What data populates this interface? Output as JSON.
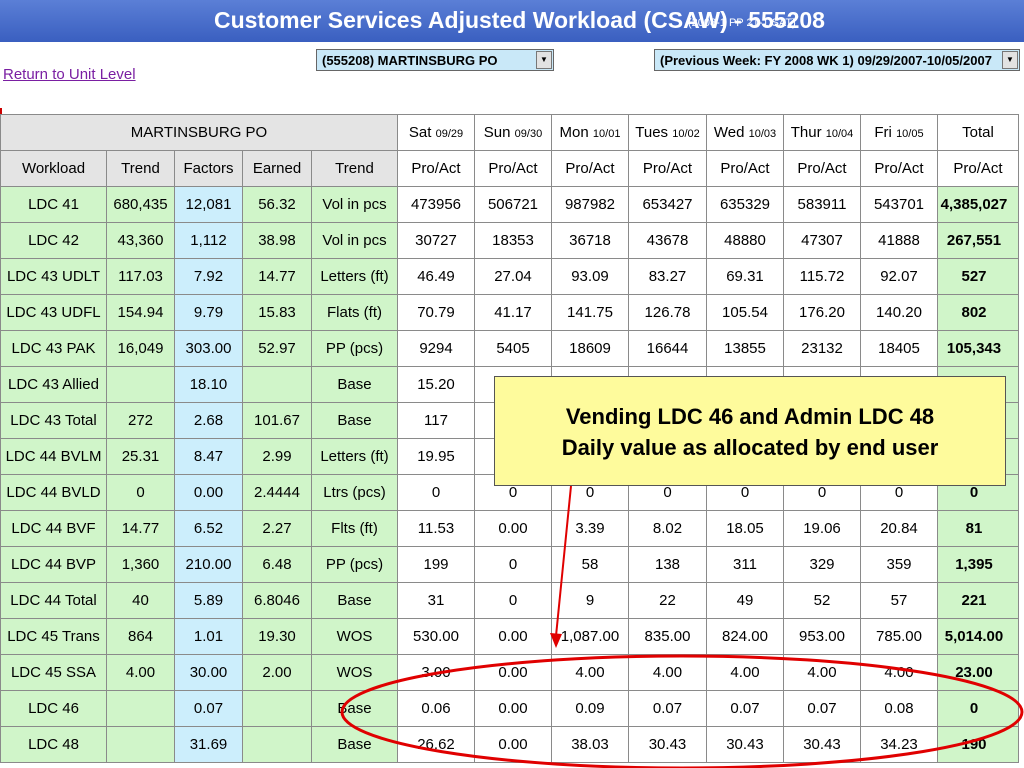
{
  "banner": {
    "title": "Customer Services Adjusted Workload (CSAW) - 555208",
    "subtitle": "(2008-1  PP 21-1   SAT)"
  },
  "toolbar": {
    "return_link": "Return to Unit Level",
    "unit_select": "(555208) MARTINSBURG PO",
    "week_select": "(Previous Week: FY 2008 WK 1) 09/29/2007-10/05/2007"
  },
  "table": {
    "unit_name": "MARTINSBURG PO",
    "days": [
      {
        "name": "Sat",
        "date": "09/29"
      },
      {
        "name": "Sun",
        "date": "09/30"
      },
      {
        "name": "Mon",
        "date": "10/01"
      },
      {
        "name": "Tues",
        "date": "10/02"
      },
      {
        "name": "Wed",
        "date": "10/03"
      },
      {
        "name": "Thur",
        "date": "10/04"
      },
      {
        "name": "Fri",
        "date": "10/05"
      }
    ],
    "total_header": "Total",
    "columns": [
      "Workload",
      "Trend",
      "Factors",
      "Earned",
      "Trend",
      "Pro/Act",
      "Pro/Act",
      "Pro/Act",
      "Pro/Act",
      "Pro/Act",
      "Pro/Act",
      "Pro/Act",
      "Pro/Act"
    ],
    "rows": [
      {
        "workload": "LDC 41",
        "trend": "680,435",
        "factors": "12,081",
        "earned": "56.32",
        "trend_unit": "Vol in pcs",
        "days": [
          "473956",
          "506721",
          "987982",
          "653427",
          "635329",
          "583911",
          "543701"
        ],
        "total": "4,385,027"
      },
      {
        "workload": "LDC 42",
        "trend": "43,360",
        "factors": "1,112",
        "earned": "38.98",
        "trend_unit": "Vol in pcs",
        "days": [
          "30727",
          "18353",
          "36718",
          "43678",
          "48880",
          "47307",
          "41888"
        ],
        "total": "267,551"
      },
      {
        "workload": "LDC 43 UDLT",
        "trend": "117.03",
        "factors": "7.92",
        "earned": "14.77",
        "trend_unit": "Letters (ft)",
        "days": [
          "46.49",
          "27.04",
          "93.09",
          "83.27",
          "69.31",
          "115.72",
          "92.07"
        ],
        "total": "527"
      },
      {
        "workload": "LDC 43 UDFL",
        "trend": "154.94",
        "factors": "9.79",
        "earned": "15.83",
        "trend_unit": "Flats (ft)",
        "days": [
          "70.79",
          "41.17",
          "141.75",
          "126.78",
          "105.54",
          "176.20",
          "140.20"
        ],
        "total": "802"
      },
      {
        "workload": "LDC 43 PAK",
        "trend": "16,049",
        "factors": "303.00",
        "earned": "52.97",
        "trend_unit": "PP (pcs)",
        "days": [
          "9294",
          "5405",
          "18609",
          "16644",
          "13855",
          "23132",
          "18405"
        ],
        "total": "105,343"
      },
      {
        "workload": "LDC 43 Allied",
        "trend": "",
        "factors": "18.10",
        "earned": "",
        "trend_unit": "Base",
        "days": [
          "15.20",
          "",
          "",
          "",
          "",
          "",
          ""
        ],
        "total": ""
      },
      {
        "workload": "LDC 43 Total",
        "trend": "272",
        "factors": "2.68",
        "earned": "101.67",
        "trend_unit": "Base",
        "days": [
          "117",
          "",
          "",
          "",
          "",
          "",
          ""
        ],
        "total": ""
      },
      {
        "workload": "LDC 44 BVLM",
        "trend": "25.31",
        "factors": "8.47",
        "earned": "2.99",
        "trend_unit": "Letters (ft)",
        "days": [
          "19.95",
          "",
          "",
          "",
          "",
          "",
          ""
        ],
        "total": ""
      },
      {
        "workload": "LDC 44 BVLD",
        "trend": "0",
        "factors": "0.00",
        "earned": "2.4444",
        "trend_unit": "Ltrs (pcs)",
        "days": [
          "0",
          "0",
          "0",
          "0",
          "0",
          "0",
          "0"
        ],
        "total": "0"
      },
      {
        "workload": "LDC 44 BVF",
        "trend": "14.77",
        "factors": "6.52",
        "earned": "2.27",
        "trend_unit": "Flts (ft)",
        "days": [
          "11.53",
          "0.00",
          "3.39",
          "8.02",
          "18.05",
          "19.06",
          "20.84"
        ],
        "total": "81"
      },
      {
        "workload": "LDC 44 BVP",
        "trend": "1,360",
        "factors": "210.00",
        "earned": "6.48",
        "trend_unit": "PP (pcs)",
        "days": [
          "199",
          "0",
          "58",
          "138",
          "311",
          "329",
          "359"
        ],
        "total": "1,395"
      },
      {
        "workload": "LDC 44 Total",
        "trend": "40",
        "factors": "5.89",
        "earned": "6.8046",
        "trend_unit": "Base",
        "days": [
          "31",
          "0",
          "9",
          "22",
          "49",
          "52",
          "57"
        ],
        "total": "221"
      },
      {
        "workload": "LDC 45 Trans",
        "trend": "864",
        "factors": "1.01",
        "earned": "19.30",
        "trend_unit": "WOS",
        "days": [
          "530.00",
          "0.00",
          "1,087.00",
          "835.00",
          "824.00",
          "953.00",
          "785.00"
        ],
        "total": "5,014.00"
      },
      {
        "workload": "LDC 45 SSA",
        "trend": "4.00",
        "factors": "30.00",
        "earned": "2.00",
        "trend_unit": "WOS",
        "days": [
          "3.00",
          "0.00",
          "4.00",
          "4.00",
          "4.00",
          "4.00",
          "4.00"
        ],
        "total": "23.00"
      },
      {
        "workload": "LDC 46",
        "trend": "",
        "factors": "0.07",
        "earned": "",
        "trend_unit": "Base",
        "days": [
          "0.06",
          "0.00",
          "0.09",
          "0.07",
          "0.07",
          "0.07",
          "0.08"
        ],
        "total": "0"
      },
      {
        "workload": "LDC 48",
        "trend": "",
        "factors": "31.69",
        "earned": "",
        "trend_unit": "Base",
        "days": [
          "26.62",
          "0.00",
          "38.03",
          "30.43",
          "30.43",
          "30.43",
          "34.23"
        ],
        "total": "190"
      }
    ]
  },
  "callout": {
    "line1": "Vending LDC 46 and Admin LDC 48",
    "line2": "Daily value as allocated by end user"
  },
  "colors": {
    "banner": "#3a5fc0",
    "green_cell": "#d0f5c9",
    "blue_cell": "#cceefc",
    "callout_bg": "#fefb9c",
    "annotation_red": "#e00000"
  }
}
